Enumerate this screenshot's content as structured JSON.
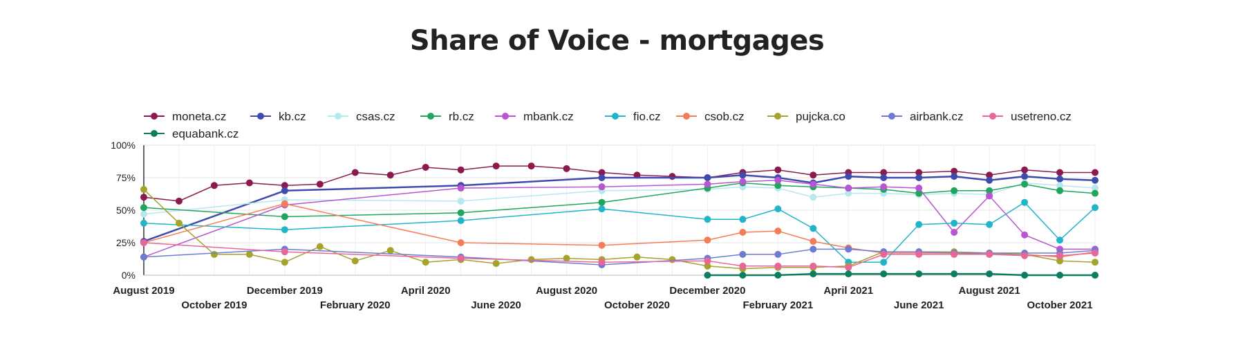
{
  "chart_data": {
    "type": "line",
    "title": "Share of Voice - mortgages",
    "ylabel": "",
    "xlabel": "",
    "ylim": [
      0,
      100
    ],
    "yticks": [
      "0%",
      "25%",
      "50%",
      "75%",
      "100%"
    ],
    "x_labels": [
      "August 2019",
      "October 2019",
      "December 2019",
      "February 2020",
      "April 2020",
      "June 2020",
      "August 2020",
      "October 2020",
      "December 2020",
      "February 2021",
      "April 2021",
      "June 2021",
      "August 2021",
      "October 2021"
    ],
    "grid": true,
    "legend_position": "top",
    "series": [
      {
        "name": "moneta.cz",
        "color": "#8b1a4f",
        "points": [
          [
            0,
            60
          ],
          [
            0.5,
            57
          ],
          [
            1,
            69
          ],
          [
            1.5,
            71
          ],
          [
            2,
            69
          ],
          [
            2.5,
            70
          ],
          [
            3,
            79
          ],
          [
            3.5,
            77
          ],
          [
            4,
            83
          ],
          [
            4.5,
            81
          ],
          [
            5,
            84
          ],
          [
            5.5,
            84
          ],
          [
            6,
            82
          ],
          [
            6.5,
            79
          ],
          [
            7,
            77
          ],
          [
            7.5,
            76
          ],
          [
            8,
            75
          ],
          [
            8.5,
            79
          ],
          [
            9,
            81
          ],
          [
            9.5,
            77
          ],
          [
            10,
            79
          ],
          [
            10.5,
            79
          ],
          [
            11,
            79
          ],
          [
            11.5,
            80
          ],
          [
            12,
            77
          ],
          [
            12.5,
            81
          ],
          [
            13,
            79
          ],
          [
            13.5,
            79
          ]
        ]
      },
      {
        "name": "kb.cz",
        "color": "#3f4aad",
        "points": [
          [
            0,
            26
          ],
          [
            2,
            65
          ],
          [
            4.5,
            69
          ],
          [
            6.5,
            75
          ],
          [
            8,
            75
          ],
          [
            8.5,
            77
          ],
          [
            9,
            75
          ],
          [
            9.5,
            71
          ],
          [
            10,
            76
          ],
          [
            10.5,
            75
          ],
          [
            11,
            75
          ],
          [
            11.5,
            76
          ],
          [
            12,
            73
          ],
          [
            12.5,
            76
          ],
          [
            13,
            74
          ],
          [
            13.5,
            73
          ]
        ]
      },
      {
        "name": "csas.cz",
        "color": "#b6e8ef",
        "points": [
          [
            0,
            47
          ],
          [
            2,
            58
          ],
          [
            4.5,
            57
          ],
          [
            6.5,
            65
          ],
          [
            8,
            66
          ],
          [
            8.5,
            68
          ],
          [
            9,
            67
          ],
          [
            9.5,
            60
          ],
          [
            10,
            63
          ],
          [
            10.5,
            63
          ],
          [
            11,
            62
          ],
          [
            11.5,
            63
          ],
          [
            12,
            62
          ],
          [
            12.5,
            71
          ],
          [
            13,
            69
          ],
          [
            13.5,
            67
          ]
        ]
      },
      {
        "name": "rb.cz",
        "color": "#1fa65c",
        "points": [
          [
            0,
            52
          ],
          [
            2,
            45
          ],
          [
            4.5,
            48
          ],
          [
            6.5,
            56
          ],
          [
            8,
            67
          ],
          [
            8.5,
            71
          ],
          [
            9,
            69
          ],
          [
            9.5,
            68
          ],
          [
            10,
            67
          ],
          [
            10.5,
            66
          ],
          [
            11,
            63
          ],
          [
            11.5,
            65
          ],
          [
            12,
            65
          ],
          [
            12.5,
            70
          ],
          [
            13,
            65
          ],
          [
            13.5,
            63
          ]
        ]
      },
      {
        "name": "mbank.cz",
        "color": "#b855d1",
        "points": [
          [
            0,
            14
          ],
          [
            2,
            54
          ],
          [
            4.5,
            67
          ],
          [
            6.5,
            68
          ],
          [
            8,
            70
          ],
          [
            8.5,
            72
          ],
          [
            9,
            73
          ],
          [
            9.5,
            70
          ],
          [
            10,
            67
          ],
          [
            10.5,
            68
          ],
          [
            11,
            67
          ],
          [
            11.5,
            33
          ],
          [
            12,
            61
          ],
          [
            12.5,
            31
          ],
          [
            13,
            20
          ],
          [
            13.5,
            20
          ]
        ]
      },
      {
        "name": "fio.cz",
        "color": "#22b4c8",
        "points": [
          [
            0,
            40
          ],
          [
            2,
            35
          ],
          [
            4.5,
            42
          ],
          [
            6.5,
            51
          ],
          [
            8,
            43
          ],
          [
            8.5,
            43
          ],
          [
            9,
            51
          ],
          [
            9.5,
            36
          ],
          [
            10,
            10
          ],
          [
            10.5,
            10
          ],
          [
            11,
            39
          ],
          [
            11.5,
            40
          ],
          [
            12,
            39
          ],
          [
            12.5,
            56
          ],
          [
            13,
            27
          ],
          [
            13.5,
            52
          ]
        ]
      },
      {
        "name": "csob.cz",
        "color": "#f47c57",
        "points": [
          [
            0,
            25
          ],
          [
            2,
            55
          ],
          [
            4.5,
            25
          ],
          [
            6.5,
            23
          ],
          [
            8,
            27
          ],
          [
            8.5,
            33
          ],
          [
            9,
            34
          ],
          [
            9.5,
            26
          ],
          [
            10,
            21
          ],
          [
            10.5,
            17
          ],
          [
            11,
            17
          ],
          [
            11.5,
            17
          ],
          [
            12,
            16
          ],
          [
            12.5,
            16
          ],
          [
            13,
            14
          ],
          [
            13.5,
            18
          ]
        ]
      },
      {
        "name": "pujcka.co",
        "color": "#a5a32b",
        "points": [
          [
            0,
            66
          ],
          [
            0.5,
            40
          ],
          [
            1,
            16
          ],
          [
            1.5,
            16
          ],
          [
            2,
            10
          ],
          [
            2.5,
            22
          ],
          [
            3,
            11
          ],
          [
            3.5,
            19
          ],
          [
            4,
            10
          ],
          [
            4.5,
            12
          ],
          [
            5,
            9
          ],
          [
            5.5,
            12
          ],
          [
            6,
            13
          ],
          [
            6.5,
            12
          ],
          [
            7,
            14
          ],
          [
            7.5,
            12
          ],
          [
            8,
            7
          ],
          [
            8.5,
            5
          ],
          [
            9,
            6
          ],
          [
            9.5,
            6
          ],
          [
            10,
            7
          ],
          [
            10.5,
            18
          ],
          [
            11,
            18
          ],
          [
            11.5,
            18
          ],
          [
            12,
            17
          ],
          [
            12.5,
            16
          ],
          [
            13,
            11
          ],
          [
            13.5,
            10
          ]
        ]
      },
      {
        "name": "airbank.cz",
        "color": "#6f7bd0",
        "points": [
          [
            0,
            14
          ],
          [
            2,
            20
          ],
          [
            4.5,
            14
          ],
          [
            6.5,
            8
          ],
          [
            8,
            13
          ],
          [
            8.5,
            16
          ],
          [
            9,
            16
          ],
          [
            9.5,
            20
          ],
          [
            10,
            20
          ],
          [
            10.5,
            18
          ],
          [
            11,
            18
          ],
          [
            11.5,
            17
          ],
          [
            12,
            17
          ],
          [
            12.5,
            17
          ],
          [
            13,
            17
          ],
          [
            13.5,
            19
          ]
        ]
      },
      {
        "name": "usetreno.cz",
        "color": "#e8679a",
        "points": [
          [
            0,
            25
          ],
          [
            2,
            18
          ],
          [
            4.5,
            13
          ],
          [
            6.5,
            10
          ],
          [
            8,
            11
          ],
          [
            8.5,
            7
          ],
          [
            9,
            7
          ],
          [
            9.5,
            7
          ],
          [
            10,
            6
          ],
          [
            10.5,
            16
          ],
          [
            11,
            16
          ],
          [
            11.5,
            16
          ],
          [
            12,
            16
          ],
          [
            12.5,
            15
          ],
          [
            13,
            15
          ],
          [
            13.5,
            17
          ]
        ]
      },
      {
        "name": "equabank.cz",
        "color": "#0c7e60",
        "points": [
          [
            8,
            0
          ],
          [
            8.5,
            0
          ],
          [
            9,
            0
          ],
          [
            9.5,
            1
          ],
          [
            10,
            1
          ],
          [
            10.5,
            1
          ],
          [
            11,
            1
          ],
          [
            11.5,
            1
          ],
          [
            12,
            1
          ],
          [
            12.5,
            0
          ],
          [
            13,
            0
          ],
          [
            13.5,
            0
          ]
        ]
      }
    ]
  }
}
